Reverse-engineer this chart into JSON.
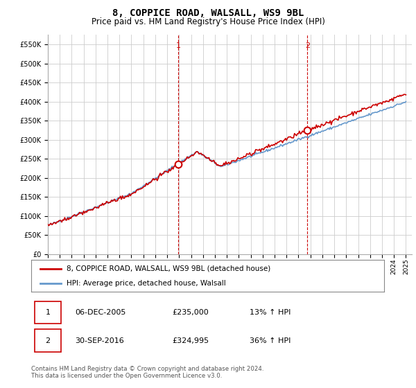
{
  "title": "8, COPPICE ROAD, WALSALL, WS9 9BL",
  "subtitle": "Price paid vs. HM Land Registry's House Price Index (HPI)",
  "red_label": "8, COPPICE ROAD, WALSALL, WS9 9BL (detached house)",
  "blue_label": "HPI: Average price, detached house, Walsall",
  "transaction1_num": "1",
  "transaction1_date": "06-DEC-2005",
  "transaction1_price": "£235,000",
  "transaction1_hpi": "13% ↑ HPI",
  "transaction2_num": "2",
  "transaction2_date": "30-SEP-2016",
  "transaction2_price": "£324,995",
  "transaction2_hpi": "36% ↑ HPI",
  "footnote": "Contains HM Land Registry data © Crown copyright and database right 2024.\nThis data is licensed under the Open Government Licence v3.0.",
  "red_color": "#cc0000",
  "blue_color": "#6699cc",
  "grid_color": "#cccccc",
  "bg_color": "#ffffff",
  "ylim_min": 0,
  "ylim_max": 575000,
  "year_start": 1995,
  "year_end": 2025,
  "transaction1_year": 2005.92,
  "transaction1_value": 235000,
  "transaction2_year": 2016.75,
  "transaction2_value": 324995
}
